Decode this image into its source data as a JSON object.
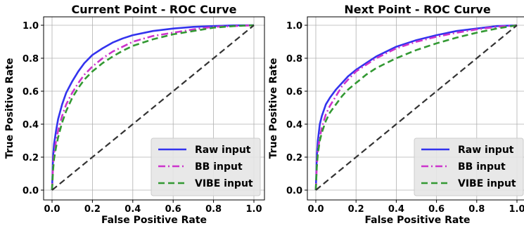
{
  "chart_data": [
    {
      "type": "line",
      "title": "Current Point - ROC Curve",
      "xlabel": "False Positive Rate",
      "ylabel": "True Positive Rate",
      "xlim": [
        0,
        1
      ],
      "ylim": [
        0,
        1
      ],
      "xticks": [
        "0.0",
        "0.2",
        "0.4",
        "0.6",
        "0.8",
        "1.0"
      ],
      "yticks": [
        "0.0",
        "0.2",
        "0.4",
        "0.6",
        "0.8",
        "1.0"
      ],
      "grid": true,
      "legend_position": "lower-right",
      "series": [
        {
          "name": "Raw input",
          "color": "#3333ee",
          "style": "solid",
          "x": [
            0,
            0.005,
            0.01,
            0.02,
            0.03,
            0.05,
            0.07,
            0.1,
            0.13,
            0.16,
            0.2,
            0.25,
            0.3,
            0.35,
            0.4,
            0.5,
            0.6,
            0.7,
            0.8,
            0.9,
            1.0
          ],
          "y": [
            0,
            0.2,
            0.28,
            0.36,
            0.43,
            0.52,
            0.59,
            0.66,
            0.72,
            0.77,
            0.82,
            0.86,
            0.895,
            0.92,
            0.94,
            0.965,
            0.98,
            0.99,
            0.995,
            0.999,
            1.0
          ]
        },
        {
          "name": "BB input",
          "color": "#cc33cc",
          "style": "dashdot",
          "x": [
            0,
            0.005,
            0.01,
            0.02,
            0.03,
            0.05,
            0.07,
            0.1,
            0.13,
            0.16,
            0.2,
            0.25,
            0.3,
            0.35,
            0.4,
            0.5,
            0.6,
            0.7,
            0.8,
            0.9,
            1.0
          ],
          "y": [
            0,
            0.15,
            0.22,
            0.3,
            0.36,
            0.45,
            0.52,
            0.59,
            0.65,
            0.7,
            0.75,
            0.8,
            0.84,
            0.87,
            0.9,
            0.935,
            0.955,
            0.975,
            0.99,
            0.995,
            1.0
          ]
        },
        {
          "name": "VIBE input",
          "color": "#339933",
          "style": "dashed",
          "x": [
            0,
            0.005,
            0.01,
            0.02,
            0.03,
            0.05,
            0.07,
            0.1,
            0.13,
            0.16,
            0.2,
            0.25,
            0.3,
            0.35,
            0.4,
            0.5,
            0.6,
            0.7,
            0.8,
            0.9,
            1.0
          ],
          "y": [
            0,
            0.12,
            0.19,
            0.26,
            0.32,
            0.41,
            0.48,
            0.56,
            0.62,
            0.67,
            0.72,
            0.77,
            0.81,
            0.845,
            0.875,
            0.915,
            0.945,
            0.965,
            0.985,
            0.995,
            1.0
          ]
        },
        {
          "name": "",
          "color": "#333333",
          "style": "dashed",
          "x": [
            0,
            1
          ],
          "y": [
            0,
            1
          ]
        }
      ]
    },
    {
      "type": "line",
      "title": "Next Point - ROC Curve",
      "xlabel": "False Positive Rate",
      "ylabel": "True Positive Rate",
      "xlim": [
        0,
        1
      ],
      "ylim": [
        0,
        1
      ],
      "xticks": [
        "0.0",
        "0.2",
        "0.4",
        "0.6",
        "0.8",
        "1.0"
      ],
      "yticks": [
        "0.0",
        "0.2",
        "0.4",
        "0.6",
        "0.8",
        "1.0"
      ],
      "grid": true,
      "legend_position": "lower-right",
      "series": [
        {
          "name": "Raw input",
          "color": "#3333ee",
          "style": "solid",
          "x": [
            0,
            0.005,
            0.01,
            0.02,
            0.03,
            0.05,
            0.07,
            0.1,
            0.13,
            0.16,
            0.2,
            0.25,
            0.3,
            0.35,
            0.4,
            0.5,
            0.6,
            0.7,
            0.8,
            0.9,
            1.0
          ],
          "y": [
            0,
            0.2,
            0.3,
            0.4,
            0.45,
            0.52,
            0.56,
            0.61,
            0.65,
            0.69,
            0.73,
            0.77,
            0.81,
            0.84,
            0.87,
            0.91,
            0.94,
            0.965,
            0.98,
            0.995,
            1.0
          ]
        },
        {
          "name": "BB input",
          "color": "#cc33cc",
          "style": "dashdot",
          "x": [
            0,
            0.005,
            0.01,
            0.02,
            0.03,
            0.05,
            0.07,
            0.1,
            0.13,
            0.16,
            0.2,
            0.25,
            0.3,
            0.35,
            0.4,
            0.5,
            0.6,
            0.7,
            0.8,
            0.9,
            1.0
          ],
          "y": [
            0,
            0.15,
            0.24,
            0.32,
            0.38,
            0.46,
            0.51,
            0.57,
            0.63,
            0.67,
            0.72,
            0.76,
            0.8,
            0.83,
            0.86,
            0.9,
            0.93,
            0.955,
            0.975,
            0.99,
            1.0
          ]
        },
        {
          "name": "VIBE input",
          "color": "#339933",
          "style": "dashed",
          "x": [
            0,
            0.005,
            0.01,
            0.02,
            0.03,
            0.05,
            0.07,
            0.1,
            0.13,
            0.16,
            0.2,
            0.25,
            0.3,
            0.35,
            0.4,
            0.5,
            0.6,
            0.7,
            0.8,
            0.9,
            1.0
          ],
          "y": [
            0,
            0.14,
            0.22,
            0.3,
            0.35,
            0.42,
            0.47,
            0.52,
            0.57,
            0.61,
            0.65,
            0.7,
            0.74,
            0.77,
            0.8,
            0.85,
            0.89,
            0.925,
            0.955,
            0.98,
            1.0
          ]
        },
        {
          "name": "",
          "color": "#333333",
          "style": "dashed",
          "x": [
            0,
            1
          ],
          "y": [
            0,
            1
          ]
        }
      ]
    }
  ]
}
